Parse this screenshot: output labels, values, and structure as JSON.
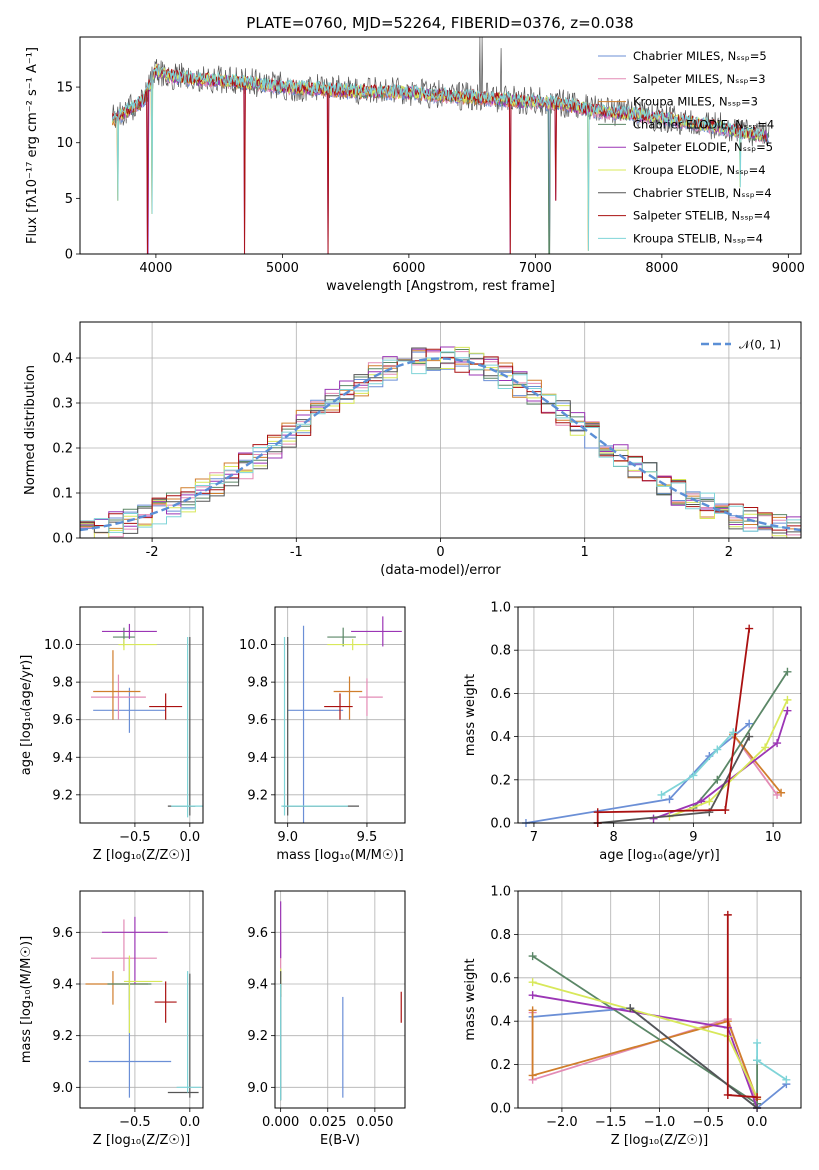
{
  "colors": [
    "#6b8fd6",
    "#e38bb5",
    "#d07e2c",
    "#5b8767",
    "#9b35b5",
    "#d8e85a",
    "#555555",
    "#aa1111",
    "#7fd4d8"
  ],
  "chart_data": [
    {
      "id": "spectrum",
      "type": "line",
      "title": "PLATE=0760, MJD=52264, FIBERID=0376, z=0.038",
      "xlabel": "wavelength [Angstrom, rest frame]",
      "ylabel": "Flux [fλ10⁻¹⁷ erg cm⁻² s⁻¹ A⁻¹]",
      "xlim": [
        3400,
        9100
      ],
      "ylim": [
        0,
        19.5
      ],
      "xticks": [
        4000,
        5000,
        6000,
        7000,
        8000,
        9000
      ],
      "yticks": [
        0,
        5,
        10,
        15
      ],
      "grid": false,
      "legend_placement": "top-right",
      "series": [
        {
          "name": "Chabrier MILES, Nₛₛₚ=5"
        },
        {
          "name": "Salpeter MILES, Nₛₛₚ=3"
        },
        {
          "name": "Kroupa MILES, Nₛₛₚ=3"
        },
        {
          "name": "Chabrier ELODIE, Nₛₛₚ=4"
        },
        {
          "name": "Salpeter ELODIE, Nₛₛₚ=5"
        },
        {
          "name": "Kroupa ELODIE, Nₛₛₚ=4"
        },
        {
          "name": "Chabrier STELIB, Nₛₛₚ=4"
        },
        {
          "name": "Salpeter STELIB, Nₛₛₚ=4"
        },
        {
          "name": "Kroupa STELIB, Nₛₛₚ=4"
        }
      ],
      "continuum": {
        "x": [
          3650,
          3800,
          3900,
          4000,
          4100,
          4300,
          4500,
          4800,
          5000,
          5300,
          5600,
          6000,
          6300,
          6600,
          6900,
          7200,
          7500,
          7800,
          8100,
          8400,
          8700,
          8850
        ],
        "y": [
          12.0,
          13.0,
          13.8,
          16.5,
          16.0,
          15.7,
          15.6,
          15.3,
          15.0,
          14.8,
          14.6,
          14.5,
          14.2,
          14.0,
          13.7,
          13.5,
          12.8,
          12.5,
          12.0,
          11.5,
          10.8,
          10.5
        ]
      },
      "absorption_dips": [
        {
          "x": 3700,
          "y": 4.8
        },
        {
          "x": 3935,
          "y": 0
        },
        {
          "x": 3970,
          "y": 3.6
        },
        {
          "x": 4700,
          "y": 0
        },
        {
          "x": 5360,
          "y": 0
        },
        {
          "x": 6800,
          "y": 0
        },
        {
          "x": 7110,
          "y": 0
        },
        {
          "x": 7160,
          "y": 4.8
        },
        {
          "x": 7420,
          "y": 0.3
        },
        {
          "x": 8620,
          "y": 6.0
        }
      ],
      "emission_spikes": [
        {
          "x": 6560,
          "y": 19.5
        },
        {
          "x": 6580,
          "y": 19.5
        },
        {
          "x": 6730,
          "y": 18.5
        }
      ]
    },
    {
      "id": "residuals",
      "type": "bar",
      "xlabel": "(data-model)/error",
      "ylabel": "Normed distribution",
      "xlim": [
        -2.5,
        2.5
      ],
      "ylim": [
        0,
        0.48
      ],
      "xticks": [
        -2,
        -1,
        0,
        1,
        2
      ],
      "yticks": [
        0.0,
        0.1,
        0.2,
        0.3,
        0.4
      ],
      "grid": true,
      "legend_placement": "top-right",
      "legend_label": "𝒩(0, 1)",
      "bin_width": 0.1
    },
    {
      "id": "age-vs-Z",
      "type": "scatter",
      "xlabel": "Z [log₁₀(Z/Z☉)]",
      "ylabel": "age  [log₁₀(age/yr)]",
      "xlim": [
        -1.0,
        0.12
      ],
      "ylim": [
        9.05,
        10.2
      ],
      "xticks": [
        -0.5,
        0.0
      ],
      "xtick_labels": [
        "−0.5",
        "0.0"
      ],
      "yticks": [
        9.2,
        9.4,
        9.6,
        9.8,
        10.0
      ],
      "grid": true,
      "errorbars": [
        {
          "s": 0,
          "x": -0.55,
          "xerr": [
            0.33,
            0.33
          ],
          "y": 9.65,
          "yerr": [
            0.12,
            0.12
          ]
        },
        {
          "s": 1,
          "x": -0.65,
          "xerr": [
            0.25,
            0.25
          ],
          "y": 9.72,
          "yerr": [
            0.12,
            0.12
          ]
        },
        {
          "s": 2,
          "x": -0.7,
          "xerr": [
            0.18,
            0.25
          ],
          "y": 9.75,
          "yerr": [
            0.15,
            0.22
          ]
        },
        {
          "s": 3,
          "x": -0.6,
          "xerr": [
            0.1,
            0.1
          ],
          "y": 10.04,
          "yerr": [
            0.05,
            0.05
          ]
        },
        {
          "s": 4,
          "x": -0.55,
          "xerr": [
            0.25,
            0.25
          ],
          "y": 10.07,
          "yerr": [
            0.04,
            0.04
          ]
        },
        {
          "s": 5,
          "x": -0.6,
          "xerr": [
            0.05,
            0.3
          ],
          "y": 10.0,
          "yerr": [
            0.03,
            0.03
          ]
        },
        {
          "s": 6,
          "x": 0.0,
          "xerr": [
            0.2,
            0.05
          ],
          "y": 9.14,
          "yerr": [
            0.05,
            0.9
          ]
        },
        {
          "s": 7,
          "x": -0.22,
          "xerr": [
            0.15,
            0.15
          ],
          "y": 9.67,
          "yerr": [
            0.07,
            0.07
          ]
        },
        {
          "s": 8,
          "x": -0.02,
          "xerr": [
            0.15,
            0.15
          ],
          "y": 9.14,
          "yerr": [
            0.06,
            0.9
          ]
        }
      ]
    },
    {
      "id": "age-vs-mass",
      "type": "scatter",
      "xlabel": "mass [log₁₀(M/M☉)]",
      "ylabel": "",
      "xlim": [
        8.92,
        9.74
      ],
      "ylim": [
        9.05,
        10.2
      ],
      "xticks": [
        9.0,
        9.5
      ],
      "yticks": [
        9.2,
        9.4,
        9.6,
        9.8,
        10.0
      ],
      "grid": true,
      "errorbars": [
        {
          "s": 0,
          "x": 9.1,
          "xerr": [
            0.1,
            0.25
          ],
          "y": 9.65,
          "yerr": [
            0.6,
            0.45
          ]
        },
        {
          "s": 1,
          "x": 9.5,
          "xerr": [
            0.05,
            0.1
          ],
          "y": 9.72,
          "yerr": [
            0.1,
            0.1
          ]
        },
        {
          "s": 2,
          "x": 9.39,
          "xerr": [
            0.1,
            0.08
          ],
          "y": 9.75,
          "yerr": [
            0.15,
            0.08
          ]
        },
        {
          "s": 3,
          "x": 9.35,
          "xerr": [
            0.1,
            0.08
          ],
          "y": 10.04,
          "yerr": [
            0.05,
            0.05
          ]
        },
        {
          "s": 4,
          "x": 9.6,
          "xerr": [
            0.2,
            0.12
          ],
          "y": 10.07,
          "yerr": [
            0.08,
            0.08
          ]
        },
        {
          "s": 5,
          "x": 9.41,
          "xerr": [
            0.16,
            0.1
          ],
          "y": 10.0,
          "yerr": [
            0.03,
            0.03
          ]
        },
        {
          "s": 6,
          "x": 9.0,
          "xerr": [
            0.03,
            0.45
          ],
          "y": 9.14,
          "yerr": [
            0.05,
            0.9
          ]
        },
        {
          "s": 7,
          "x": 9.33,
          "xerr": [
            0.1,
            0.08
          ],
          "y": 9.67,
          "yerr": [
            0.07,
            0.07
          ]
        },
        {
          "s": 8,
          "x": 8.98,
          "xerr": [
            0.02,
            0.4
          ],
          "y": 9.14,
          "yerr": [
            0.05,
            0.9
          ]
        }
      ]
    },
    {
      "id": "mass-weight-vs-age",
      "type": "line",
      "xlabel": "age  [log₁₀(age/yr)]",
      "ylabel": "mass weight",
      "xlim": [
        6.8,
        10.35
      ],
      "ylim": [
        0,
        1.0
      ],
      "xticks": [
        7,
        8,
        9,
        10
      ],
      "yticks": [
        0.0,
        0.2,
        0.4,
        0.6,
        0.8,
        1.0
      ],
      "grid": true,
      "series": [
        {
          "s": 0,
          "x": [
            6.9,
            8.7,
            9.2,
            9.7
          ],
          "y": [
            0.0,
            0.11,
            0.31,
            0.46
          ]
        },
        {
          "s": 1,
          "x": [
            9.5,
            10.05
          ],
          "y": [
            0.41,
            0.13
          ]
        },
        {
          "s": 2,
          "x": [
            9.5,
            10.1
          ],
          "y": [
            0.41,
            0.14
          ]
        },
        {
          "s": 3,
          "x": [
            9.0,
            9.3,
            10.18
          ],
          "y": [
            0.07,
            0.2,
            0.7
          ]
        },
        {
          "s": 4,
          "x": [
            8.5,
            9.1,
            10.05,
            10.18
          ],
          "y": [
            0.02,
            0.1,
            0.37,
            0.52
          ]
        },
        {
          "s": 5,
          "x": [
            8.7,
            9.2,
            9.9,
            10.18
          ],
          "y": [
            0.03,
            0.1,
            0.35,
            0.57
          ]
        },
        {
          "s": 6,
          "x": [
            7.8,
            9.2,
            9.7
          ],
          "y": [
            0.0,
            0.05,
            0.4
          ]
        },
        {
          "s": 7,
          "x": [
            7.8,
            7.8,
            9.4,
            9.7
          ],
          "y": [
            0.0,
            0.05,
            0.06,
            0.9
          ]
        },
        {
          "s": 8,
          "x": [
            8.6,
            9.0,
            9.3,
            9.5
          ],
          "y": [
            0.13,
            0.22,
            0.34,
            0.42
          ]
        }
      ]
    },
    {
      "id": "mass-vs-Z",
      "type": "scatter",
      "xlabel": "Z [log₁₀(Z/Z☉)]",
      "ylabel": "mass [log₁₀(M/M☉)]",
      "xlim": [
        -1.0,
        0.12
      ],
      "ylim": [
        8.92,
        9.76
      ],
      "xticks": [
        -0.5,
        0.0
      ],
      "xtick_labels": [
        "−0.5",
        "0.0"
      ],
      "yticks": [
        9.0,
        9.2,
        9.4,
        9.6
      ],
      "grid": true,
      "errorbars": [
        {
          "s": 0,
          "x": -0.55,
          "xerr": [
            0.37,
            0.38
          ],
          "y": 9.1,
          "yerr": [
            0.14,
            0.3
          ]
        },
        {
          "s": 1,
          "x": -0.6,
          "xerr": [
            0.3,
            0.3
          ],
          "y": 9.5,
          "yerr": [
            0.05,
            0.15
          ]
        },
        {
          "s": 2,
          "x": -0.7,
          "xerr": [
            0.25,
            0.32
          ],
          "y": 9.4,
          "yerr": [
            0.08,
            0.05
          ]
        },
        {
          "s": 3,
          "x": -0.55,
          "xerr": [
            0.2,
            0.2
          ],
          "y": 9.4,
          "yerr": [
            0.1,
            0.1
          ]
        },
        {
          "s": 4,
          "x": -0.5,
          "xerr": [
            0.3,
            0.3
          ],
          "y": 9.6,
          "yerr": [
            0.2,
            0.06
          ]
        },
        {
          "s": 5,
          "x": -0.55,
          "xerr": [
            0.05,
            0.3
          ],
          "y": 9.41,
          "yerr": [
            0.2,
            0.1
          ]
        },
        {
          "s": 6,
          "x": 0.0,
          "xerr": [
            0.2,
            0.08
          ],
          "y": 8.98,
          "yerr": [
            0.02,
            0.46
          ]
        },
        {
          "s": 7,
          "x": -0.22,
          "xerr": [
            0.1,
            0.1
          ],
          "y": 9.33,
          "yerr": [
            0.08,
            0.08
          ]
        },
        {
          "s": 8,
          "x": -0.02,
          "xerr": [
            0.1,
            0.12
          ],
          "y": 9.0,
          "yerr": [
            0.02,
            0.45
          ]
        }
      ]
    },
    {
      "id": "mass-vs-ebv",
      "type": "scatter",
      "xlabel": "E(B-V)",
      "ylabel": "",
      "xlim": [
        -0.003,
        0.066
      ],
      "ylim": [
        8.92,
        9.76
      ],
      "xticks": [
        0.0,
        0.025,
        0.05
      ],
      "xtick_labels": [
        "0.000",
        "0.025",
        "0.050"
      ],
      "yticks": [
        9.0,
        9.2,
        9.4,
        9.6
      ],
      "grid": true,
      "errorbars": [
        {
          "s": 0,
          "x": 0.033,
          "xerr": [
            0,
            0
          ],
          "y": 9.1,
          "yerr": [
            0.14,
            0.25
          ]
        },
        {
          "s": 1,
          "x": 0.0,
          "xerr": [
            0,
            0
          ],
          "y": 9.5,
          "yerr": [
            0.05,
            0.1
          ]
        },
        {
          "s": 2,
          "x": 0.0,
          "xerr": [
            0,
            0
          ],
          "y": 9.4,
          "yerr": [
            0.05,
            0.05
          ]
        },
        {
          "s": 3,
          "x": 0.0,
          "xerr": [
            0,
            0
          ],
          "y": 9.4,
          "yerr": [
            0.05,
            0.05
          ]
        },
        {
          "s": 4,
          "x": 0.0,
          "xerr": [
            0,
            0
          ],
          "y": 9.6,
          "yerr": [
            0.1,
            0.12
          ]
        },
        {
          "s": 5,
          "x": 0.0,
          "xerr": [
            0,
            0
          ],
          "y": 9.41,
          "yerr": [
            0.05,
            0.05
          ]
        },
        {
          "s": 6,
          "x": 0.0,
          "xerr": [
            0,
            0
          ],
          "y": 9.2,
          "yerr": [
            0.25,
            0.25
          ]
        },
        {
          "s": 7,
          "x": 0.064,
          "xerr": [
            0,
            0
          ],
          "y": 9.3,
          "yerr": [
            0.05,
            0.07
          ]
        },
        {
          "s": 8,
          "x": 0.0,
          "xerr": [
            0,
            0
          ],
          "y": 9.0,
          "yerr": [
            0.05,
            0.4
          ]
        }
      ]
    },
    {
      "id": "mass-weight-vs-Z",
      "type": "line",
      "xlabel": "Z [log₁₀(Z/Z☉)]",
      "ylabel": "mass weight",
      "xlim": [
        -2.45,
        0.45
      ],
      "ylim": [
        0,
        1.0
      ],
      "xticks": [
        -2.0,
        -1.5,
        -1.0,
        -0.5,
        0.0
      ],
      "xtick_labels": [
        "−2.0",
        "−1.5",
        "−1.0",
        "−0.5",
        "0.0"
      ],
      "yticks": [
        0.0,
        0.2,
        0.4,
        0.6,
        0.8,
        1.0
      ],
      "grid": true,
      "series": [
        {
          "s": 0,
          "x": [
            -2.3,
            -1.3,
            0.0,
            0.3
          ],
          "y": [
            0.42,
            0.46,
            0.0,
            0.11
          ]
        },
        {
          "s": 1,
          "x": [
            -2.3,
            -2.3,
            -0.3,
            0.0
          ],
          "y": [
            0.44,
            0.13,
            0.41,
            0.02
          ]
        },
        {
          "s": 2,
          "x": [
            -2.3,
            -2.3,
            -0.3,
            0.0
          ],
          "y": [
            0.45,
            0.15,
            0.4,
            0.04
          ]
        },
        {
          "s": 3,
          "x": [
            -2.3,
            0.0,
            0.0
          ],
          "y": [
            0.7,
            0.02,
            0.22
          ]
        },
        {
          "s": 4,
          "x": [
            -2.3,
            -0.3,
            0.0
          ],
          "y": [
            0.52,
            0.37,
            0.0
          ]
        },
        {
          "s": 5,
          "x": [
            -2.3,
            -0.3,
            0.0
          ],
          "y": [
            0.58,
            0.33,
            0.05
          ]
        },
        {
          "s": 6,
          "x": [
            -1.3,
            0.0
          ],
          "y": [
            0.46,
            0.0
          ]
        },
        {
          "s": 7,
          "x": [
            -0.3,
            -0.3,
            0.0
          ],
          "y": [
            0.89,
            0.06,
            0.05
          ]
        },
        {
          "s": 8,
          "x": [
            0.0,
            0.0,
            0.3
          ],
          "y": [
            0.3,
            0.22,
            0.13
          ]
        }
      ]
    }
  ]
}
